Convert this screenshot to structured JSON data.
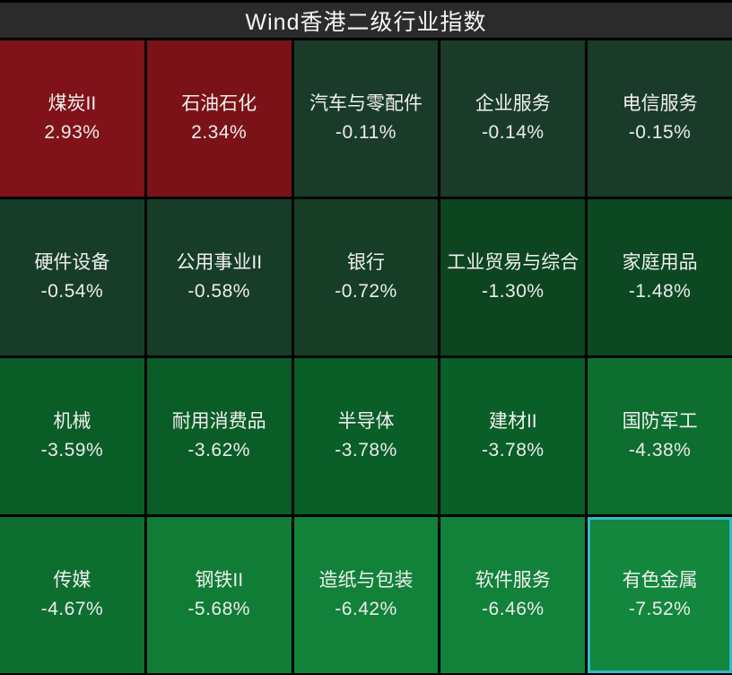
{
  "title": "Wind香港二级行业指数",
  "colors": {
    "background": "#000000",
    "titlebar_bg": "#2b2b2b",
    "title_text": "#f5f5f5",
    "tile_text": "#f0f0f0",
    "selected_border": "#36b8c9",
    "gain_dark_red": "#7c1218",
    "loss_bright_green": "#13873d"
  },
  "chart_data": {
    "type": "heatmap",
    "title": "Wind香港二级行业指数",
    "layout": {
      "columns": 5,
      "rows": 4,
      "order": "row-major, sorted by change descending"
    },
    "value_unit": "percent daily change",
    "tiles": [
      {
        "name": "煤炭II",
        "change_label": "2.93%",
        "value": 2.93,
        "bg": "#801319",
        "selected": false
      },
      {
        "name": "石油石化",
        "change_label": "2.34%",
        "value": 2.34,
        "bg": "#7a1218",
        "selected": false
      },
      {
        "name": "汽车与零配件",
        "change_label": "-0.11%",
        "value": -0.11,
        "bg": "#1a3b2a",
        "selected": false
      },
      {
        "name": "企业服务",
        "change_label": "-0.14%",
        "value": -0.14,
        "bg": "#1a3b2a",
        "selected": false
      },
      {
        "name": "电信服务",
        "change_label": "-0.15%",
        "value": -0.15,
        "bg": "#1a3b2a",
        "selected": false
      },
      {
        "name": "硬件设备",
        "change_label": "-0.54%",
        "value": -0.54,
        "bg": "#173d28",
        "selected": false
      },
      {
        "name": "公用事业II",
        "change_label": "-0.58%",
        "value": -0.58,
        "bg": "#173d28",
        "selected": false
      },
      {
        "name": "银行",
        "change_label": "-0.72%",
        "value": -0.72,
        "bg": "#163e27",
        "selected": false
      },
      {
        "name": "工业贸易与综合",
        "change_label": "-1.30%",
        "value": -1.3,
        "bg": "#0c4520",
        "selected": false
      },
      {
        "name": "家庭用品",
        "change_label": "-1.48%",
        "value": -1.48,
        "bg": "#0c4822",
        "selected": false
      },
      {
        "name": "机械",
        "change_label": "-3.59%",
        "value": -3.59,
        "bg": "#0b5d27",
        "selected": false
      },
      {
        "name": "耐用消费品",
        "change_label": "-3.62%",
        "value": -3.62,
        "bg": "#0b5d27",
        "selected": false
      },
      {
        "name": "半导体",
        "change_label": "-3.78%",
        "value": -3.78,
        "bg": "#0a5e28",
        "selected": false
      },
      {
        "name": "建材II",
        "change_label": "-3.78%",
        "value": -3.78,
        "bg": "#0a5e28",
        "selected": false
      },
      {
        "name": "国防军工",
        "change_label": "-4.38%",
        "value": -4.38,
        "bg": "#0e6e30",
        "selected": false
      },
      {
        "name": "传媒",
        "change_label": "-4.67%",
        "value": -4.67,
        "bg": "#0e6e30",
        "selected": false
      },
      {
        "name": "钢铁II",
        "change_label": "-5.68%",
        "value": -5.68,
        "bg": "#117c35",
        "selected": false
      },
      {
        "name": "造纸与包装",
        "change_label": "-6.42%",
        "value": -6.42,
        "bg": "#12813a",
        "selected": false
      },
      {
        "name": "软件服务",
        "change_label": "-6.46%",
        "value": -6.46,
        "bg": "#12813a",
        "selected": false
      },
      {
        "name": "有色金属",
        "change_label": "-7.52%",
        "value": -7.52,
        "bg": "#13873d",
        "selected": true
      }
    ]
  }
}
